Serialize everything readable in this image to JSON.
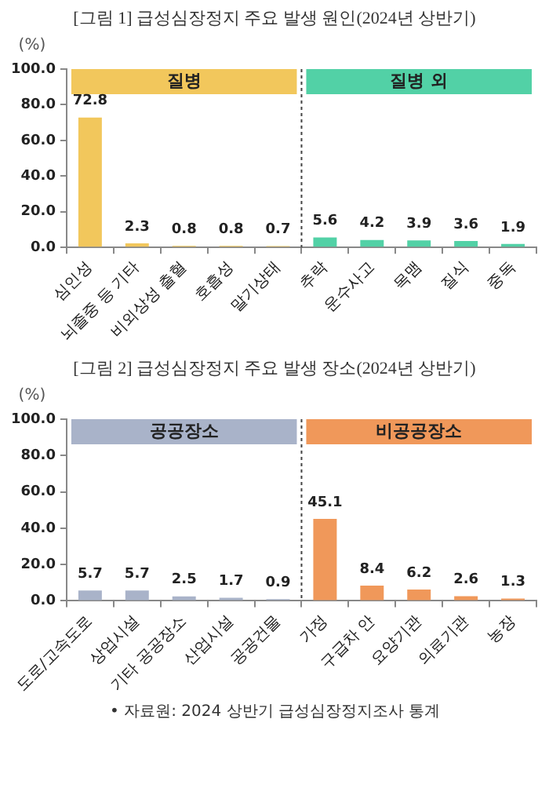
{
  "chart_data": [
    {
      "type": "bar",
      "title": "[그림 1] 급성심장정지 주요 발생 원인(2024년 상반기)",
      "ylabel": "(%)",
      "categories": [
        "심인성",
        "뇌졸중 등 기타",
        "비외상성 출혈",
        "호흡성",
        "말기상태",
        "추락",
        "운수사고",
        "목맴",
        "질식",
        "중독"
      ],
      "series": [
        {
          "name": "질병",
          "color": "#f2c75c",
          "values": [
            72.8,
            2.3,
            0.8,
            0.8,
            0.7,
            null,
            null,
            null,
            null,
            null
          ]
        },
        {
          "name": "질병 외",
          "color": "#52d1a6",
          "values": [
            null,
            null,
            null,
            null,
            null,
            5.6,
            4.2,
            3.9,
            3.6,
            1.9
          ]
        }
      ],
      "ylim": [
        0,
        100
      ],
      "yticks": [
        {
          "value": 0,
          "label": "0.0"
        },
        {
          "value": 20,
          "label": "20.0"
        },
        {
          "value": 40,
          "label": "40.0"
        },
        {
          "value": 60,
          "label": "60.0"
        },
        {
          "value": 80,
          "label": "80.0"
        },
        {
          "value": 100,
          "label": "100.0"
        }
      ],
      "grid": false,
      "legend": "top",
      "data_labels": true
    },
    {
      "type": "bar",
      "title": "[그림 2] 급성심장정지 주요 발생 장소(2024년 상반기)",
      "ylabel": "(%)",
      "categories": [
        "도로/고속도로",
        "상업시설",
        "기타 공공장소",
        "산업시설",
        "공공건물",
        "가정",
        "구급차 안",
        "요양기관",
        "의료기관",
        "농장"
      ],
      "series": [
        {
          "name": "공공장소",
          "color": "#a9b3c9",
          "values": [
            5.7,
            5.7,
            2.5,
            1.7,
            0.9,
            null,
            null,
            null,
            null,
            null
          ]
        },
        {
          "name": "비공공장소",
          "color": "#f0985a",
          "values": [
            null,
            null,
            null,
            null,
            null,
            45.1,
            8.4,
            6.2,
            2.6,
            1.3
          ]
        }
      ],
      "ylim": [
        0,
        100
      ],
      "yticks": [
        {
          "value": 0,
          "label": "0.0"
        },
        {
          "value": 20,
          "label": "20.0"
        },
        {
          "value": 40,
          "label": "40.0"
        },
        {
          "value": 60,
          "label": "60.0"
        },
        {
          "value": 80,
          "label": "80.0"
        },
        {
          "value": 100,
          "label": "100.0"
        }
      ],
      "grid": false,
      "legend": "top",
      "data_labels": true,
      "annotations": [
        "• 자료원: 2024 상반기 급성심장정지조사 통계"
      ]
    }
  ]
}
